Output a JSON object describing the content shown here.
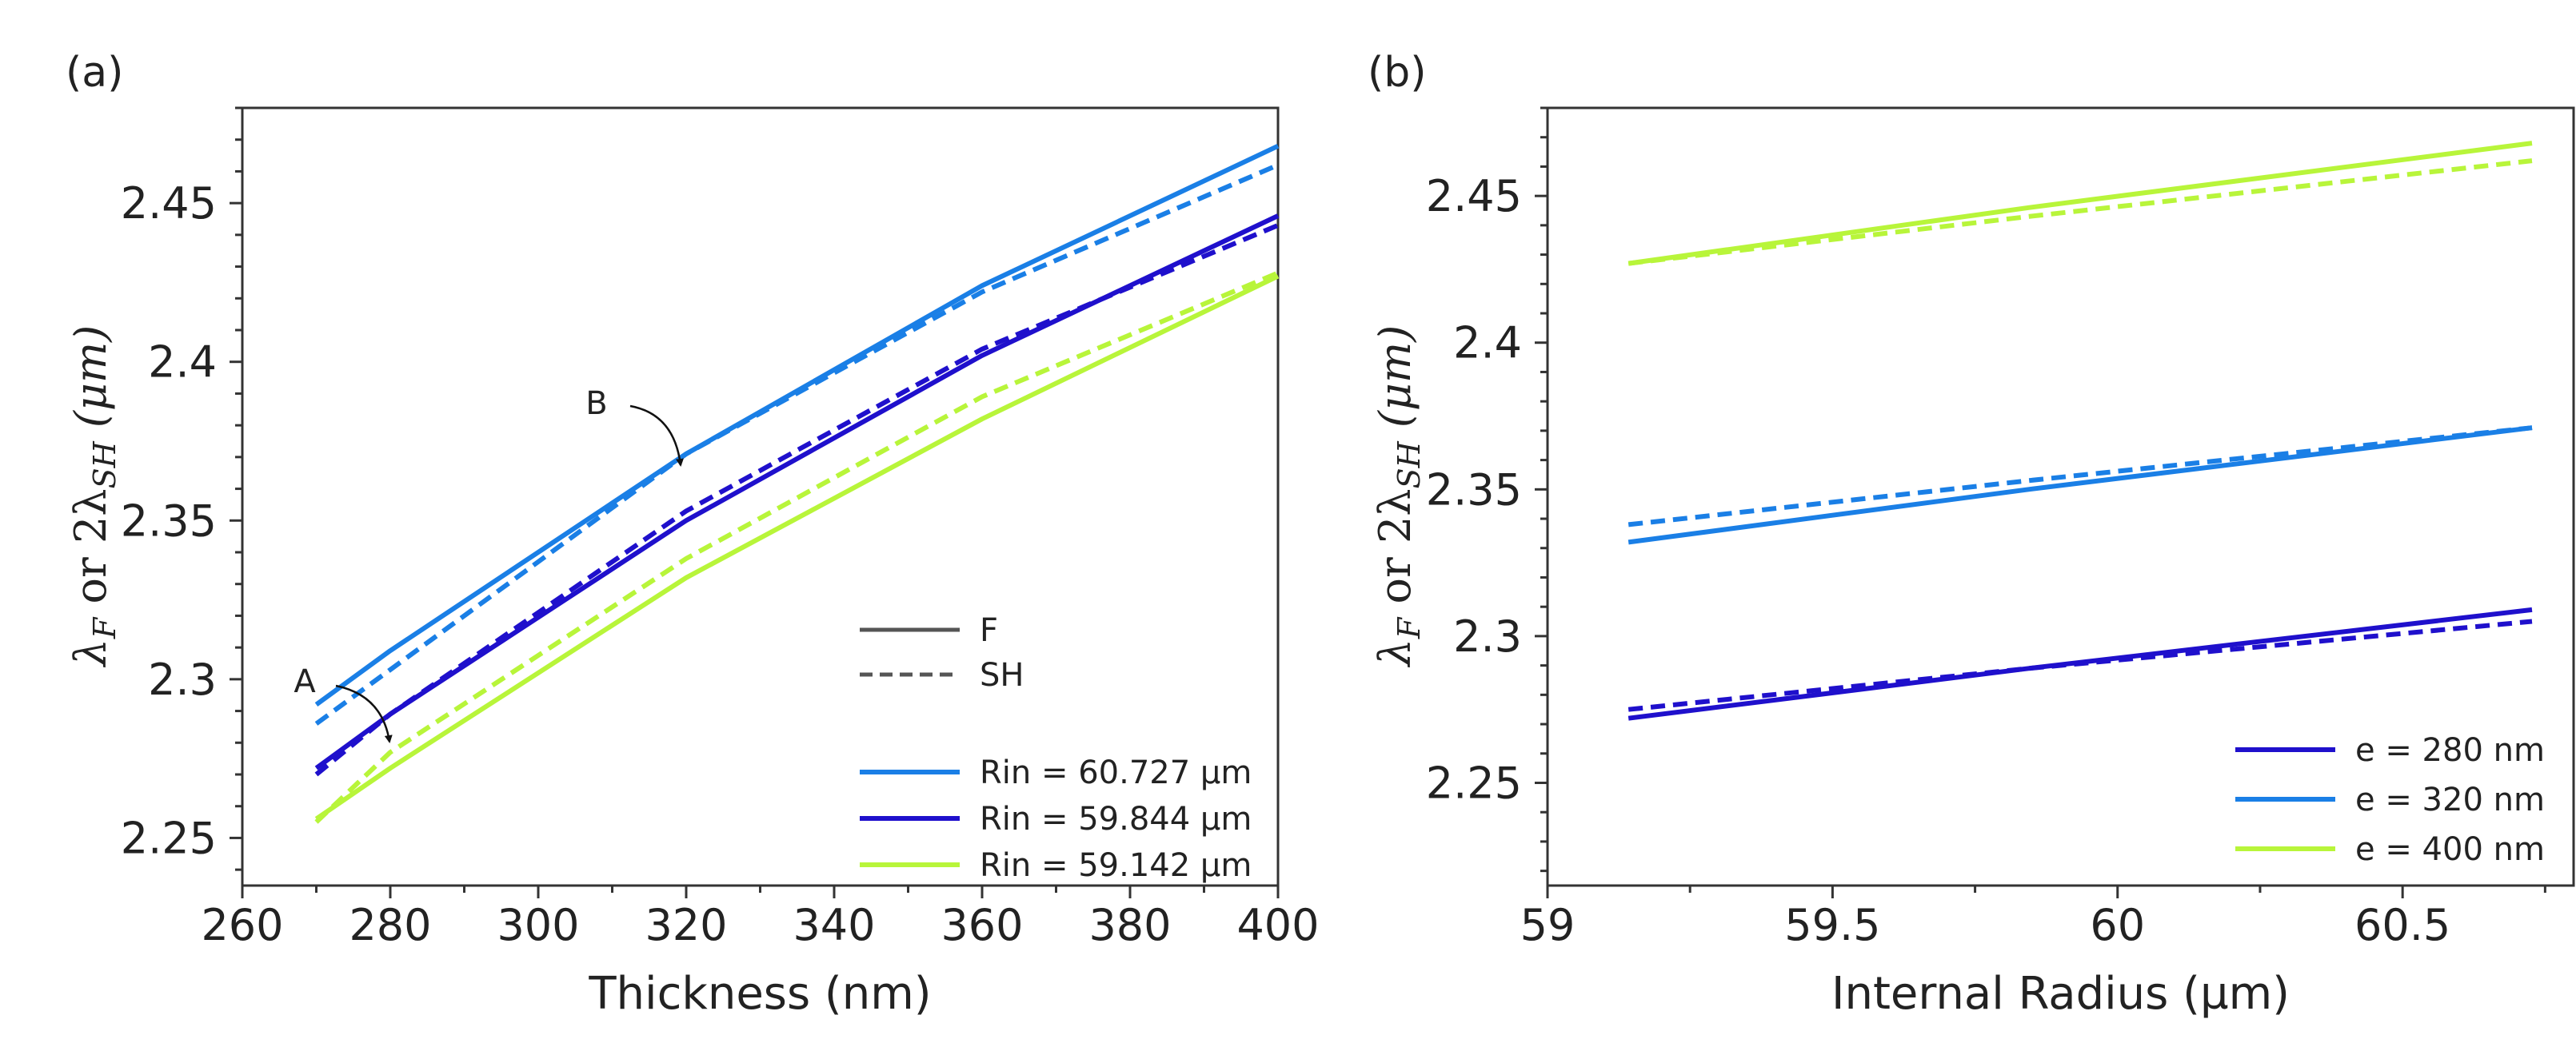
{
  "chart_data": [
    {
      "panel": "(a)",
      "type": "line",
      "title": "",
      "xlabel": "Thickness (nm)",
      "ylabel": {
        "main": "λ",
        "sub1": "F",
        "mid": " or 2λ",
        "sub2": "SH",
        "unit": " (μm)"
      },
      "xlim": [
        260,
        400
      ],
      "ylim": [
        2.235,
        2.48
      ],
      "xticks": [
        260,
        280,
        300,
        320,
        340,
        360,
        380,
        400
      ],
      "xtick_labels": [
        "260",
        "280",
        "300",
        "320",
        "340",
        "360",
        "380",
        "400"
      ],
      "yticks": [
        2.25,
        2.3,
        2.35,
        2.4,
        2.45
      ],
      "ytick_labels": [
        "2.25",
        "2.3",
        "2.35",
        "2.4",
        "2.45"
      ],
      "x": [
        270,
        280,
        320,
        360,
        400
      ],
      "series": [
        {
          "name": "Rin = 60.727 µm",
          "kind": "F",
          "color": "#1a7fe6",
          "values": [
            2.292,
            2.309,
            2.371,
            2.424,
            2.468
          ]
        },
        {
          "name": "Rin = 60.727 µm",
          "kind": "SH",
          "color": "#1a7fe6",
          "values": [
            2.286,
            2.303,
            2.371,
            2.422,
            2.462
          ]
        },
        {
          "name": "Rin = 59.844 µm",
          "kind": "F",
          "color": "#1f10cc",
          "values": [
            2.272,
            2.289,
            2.35,
            2.402,
            2.446
          ]
        },
        {
          "name": "Rin = 59.844 µm",
          "kind": "SH",
          "color": "#1f10cc",
          "values": [
            2.27,
            2.289,
            2.353,
            2.404,
            2.443
          ]
        },
        {
          "name": "Rin = 59.142 µm",
          "kind": "F",
          "color": "#b8f53a",
          "values": [
            2.256,
            2.272,
            2.332,
            2.382,
            2.427
          ]
        },
        {
          "name": "Rin = 59.142 µm",
          "kind": "SH",
          "color": "#b8f53a",
          "values": [
            2.255,
            2.277,
            2.338,
            2.389,
            2.428
          ]
        }
      ],
      "style_legend": [
        {
          "label": "F",
          "dash": "solid"
        },
        {
          "label": "SH",
          "dash": "dashed"
        }
      ],
      "legend": [
        "Rin = 60.727 µm",
        "Rin = 59.844 µm",
        "Rin = 59.142 µm"
      ],
      "legend_colors": [
        "#1a7fe6",
        "#1f10cc",
        "#b8f53a"
      ],
      "legend_position": "bottom-right",
      "annotations": [
        {
          "text": "A",
          "point": [
            280,
            2.289
          ]
        },
        {
          "text": "B",
          "point": [
            320,
            2.371
          ]
        }
      ],
      "grid": false
    },
    {
      "panel": "(b)",
      "type": "line",
      "title": "",
      "xlabel": "Internal Radius (µm)",
      "ylabel": {
        "main": "λ",
        "sub1": "F",
        "mid": " or 2λ",
        "sub2": "SH",
        "unit": " (μm)"
      },
      "xlim": [
        59,
        60.8
      ],
      "ylim": [
        2.215,
        2.48
      ],
      "xticks": [
        59,
        59.5,
        60,
        60.5
      ],
      "xtick_labels": [
        "59",
        "59.5",
        "60",
        "60.5"
      ],
      "yticks": [
        2.25,
        2.3,
        2.35,
        2.4,
        2.45
      ],
      "ytick_labels": [
        "2.25",
        "2.3",
        "2.35",
        "2.4",
        "2.45"
      ],
      "x": [
        59.142,
        59.844,
        60.727
      ],
      "series": [
        {
          "name": "e = 280 nm",
          "kind": "F",
          "color": "#1f10cc",
          "values": [
            2.272,
            2.289,
            2.309
          ]
        },
        {
          "name": "e = 280 nm",
          "kind": "SH",
          "color": "#1f10cc",
          "values": [
            2.275,
            2.289,
            2.305
          ]
        },
        {
          "name": "e = 320 nm",
          "kind": "F",
          "color": "#1a7fe6",
          "values": [
            2.332,
            2.35,
            2.371
          ]
        },
        {
          "name": "e = 320 nm",
          "kind": "SH",
          "color": "#1a7fe6",
          "values": [
            2.338,
            2.353,
            2.371
          ]
        },
        {
          "name": "e = 400 nm",
          "kind": "F",
          "color": "#b8f53a",
          "values": [
            2.427,
            2.446,
            2.468
          ]
        },
        {
          "name": "e = 400 nm",
          "kind": "SH",
          "color": "#b8f53a",
          "values": [
            2.427,
            2.443,
            2.462
          ]
        }
      ],
      "legend": [
        "e = 280 nm",
        "e = 320 nm",
        "e = 400 nm"
      ],
      "legend_colors": [
        "#1f10cc",
        "#1a7fe6",
        "#b8f53a"
      ],
      "legend_position": "bottom-right",
      "grid": false
    }
  ]
}
